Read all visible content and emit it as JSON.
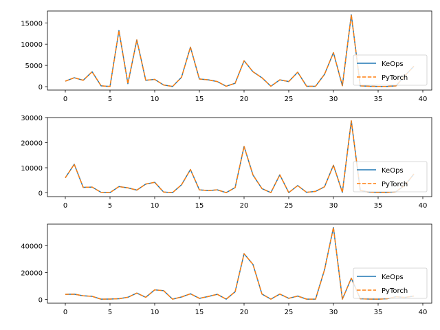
{
  "chart_data": [
    {
      "type": "line",
      "x": [
        0,
        1,
        2,
        3,
        4,
        5,
        6,
        7,
        8,
        9,
        10,
        11,
        12,
        13,
        14,
        15,
        16,
        17,
        18,
        19,
        20,
        21,
        22,
        23,
        24,
        25,
        26,
        27,
        28,
        29,
        30,
        31,
        32,
        33,
        34,
        35,
        36,
        37,
        38,
        39
      ],
      "xlim": [
        -2,
        41
      ],
      "ylim": [
        -800,
        17800
      ],
      "xticks": [
        0,
        5,
        10,
        15,
        20,
        25,
        30,
        35,
        40
      ],
      "yticks": [
        0,
        5000,
        10000,
        15000
      ],
      "series": [
        {
          "name": "KeOps",
          "color": "#1f77b4",
          "style": "solid",
          "values": [
            1300,
            2100,
            1500,
            3500,
            200,
            50,
            13200,
            700,
            11000,
            1500,
            1700,
            400,
            50,
            2200,
            9300,
            1800,
            1600,
            1200,
            100,
            800,
            6100,
            3500,
            2100,
            100,
            1600,
            1200,
            3400,
            100,
            100,
            2900,
            8000,
            200,
            16900,
            200,
            100,
            50,
            50,
            200,
            2600,
            4800
          ]
        },
        {
          "name": "PyTorch",
          "color": "#ff7f0e",
          "style": "dashed",
          "values": [
            1300,
            2100,
            1500,
            3500,
            200,
            50,
            13200,
            700,
            11000,
            1500,
            1700,
            400,
            50,
            2200,
            9300,
            1800,
            1600,
            1200,
            100,
            800,
            6100,
            3500,
            2100,
            100,
            1600,
            1200,
            3400,
            100,
            100,
            2900,
            8000,
            200,
            16900,
            200,
            100,
            50,
            50,
            200,
            2600,
            4800
          ]
        }
      ],
      "legend": "lower-right",
      "grid": false
    },
    {
      "type": "line",
      "x": [
        0,
        1,
        2,
        3,
        4,
        5,
        6,
        7,
        8,
        9,
        10,
        11,
        12,
        13,
        14,
        15,
        16,
        17,
        18,
        19,
        20,
        21,
        22,
        23,
        24,
        25,
        26,
        27,
        28,
        29,
        30,
        31,
        32,
        33,
        34,
        35,
        36,
        37,
        38,
        39
      ],
      "xlim": [
        -2,
        41
      ],
      "ylim": [
        -1500,
        30000
      ],
      "xticks": [
        0,
        5,
        10,
        15,
        20,
        25,
        30,
        35,
        40
      ],
      "yticks": [
        0,
        10000,
        20000,
        30000
      ],
      "series": [
        {
          "name": "KeOps",
          "color": "#1f77b4",
          "style": "solid",
          "values": [
            6000,
            11400,
            2200,
            2300,
            200,
            100,
            2500,
            2000,
            1100,
            3500,
            4200,
            300,
            100,
            3200,
            9300,
            1200,
            900,
            1200,
            100,
            2100,
            18500,
            7100,
            1700,
            100,
            7200,
            100,
            2900,
            200,
            600,
            2400,
            11000,
            200,
            28700,
            1000,
            300,
            100,
            100,
            500,
            3000,
            7500
          ]
        },
        {
          "name": "PyTorch",
          "color": "#ff7f0e",
          "style": "dashed",
          "values": [
            6000,
            11400,
            2200,
            2300,
            200,
            100,
            2500,
            2000,
            1100,
            3500,
            4200,
            300,
            100,
            3200,
            9300,
            1200,
            900,
            1200,
            100,
            2100,
            18500,
            7100,
            1700,
            100,
            7200,
            100,
            2900,
            200,
            600,
            2400,
            11000,
            200,
            28700,
            1000,
            300,
            100,
            100,
            500,
            3000,
            7500
          ]
        }
      ],
      "legend": "lower-right",
      "grid": false
    },
    {
      "type": "line",
      "x": [
        0,
        1,
        2,
        3,
        4,
        5,
        6,
        7,
        8,
        9,
        10,
        11,
        12,
        13,
        14,
        15,
        16,
        17,
        18,
        19,
        20,
        21,
        22,
        23,
        24,
        25,
        26,
        27,
        28,
        29,
        30,
        31,
        32,
        33,
        34,
        35,
        36,
        37,
        38,
        39
      ],
      "xlim": [
        -2,
        41
      ],
      "ylim": [
        -2800,
        56000
      ],
      "xticks": [
        0,
        5,
        10,
        15,
        20,
        25,
        30,
        35,
        40
      ],
      "yticks": [
        0,
        20000,
        40000
      ],
      "series": [
        {
          "name": "KeOps",
          "color": "#1f77b4",
          "style": "solid",
          "values": [
            3800,
            3900,
            2700,
            2300,
            200,
            300,
            500,
            1600,
            4700,
            1600,
            7100,
            6500,
            200,
            1800,
            4200,
            800,
            2200,
            3800,
            200,
            5700,
            34000,
            26000,
            4000,
            200,
            4000,
            800,
            2500,
            200,
            200,
            22000,
            53500,
            200,
            15800,
            500,
            300,
            200,
            500,
            2000,
            1500,
            2500
          ]
        },
        {
          "name": "PyTorch",
          "color": "#ff7f0e",
          "style": "dashed",
          "values": [
            3800,
            3900,
            2700,
            2300,
            200,
            300,
            500,
            1600,
            4700,
            1600,
            7100,
            6500,
            200,
            1800,
            4200,
            800,
            2200,
            3800,
            200,
            5700,
            34000,
            26000,
            4000,
            200,
            4000,
            800,
            2500,
            200,
            200,
            22000,
            53500,
            200,
            15800,
            500,
            300,
            200,
            500,
            2000,
            1500,
            2500
          ]
        }
      ],
      "legend": "lower-right",
      "grid": false
    }
  ]
}
